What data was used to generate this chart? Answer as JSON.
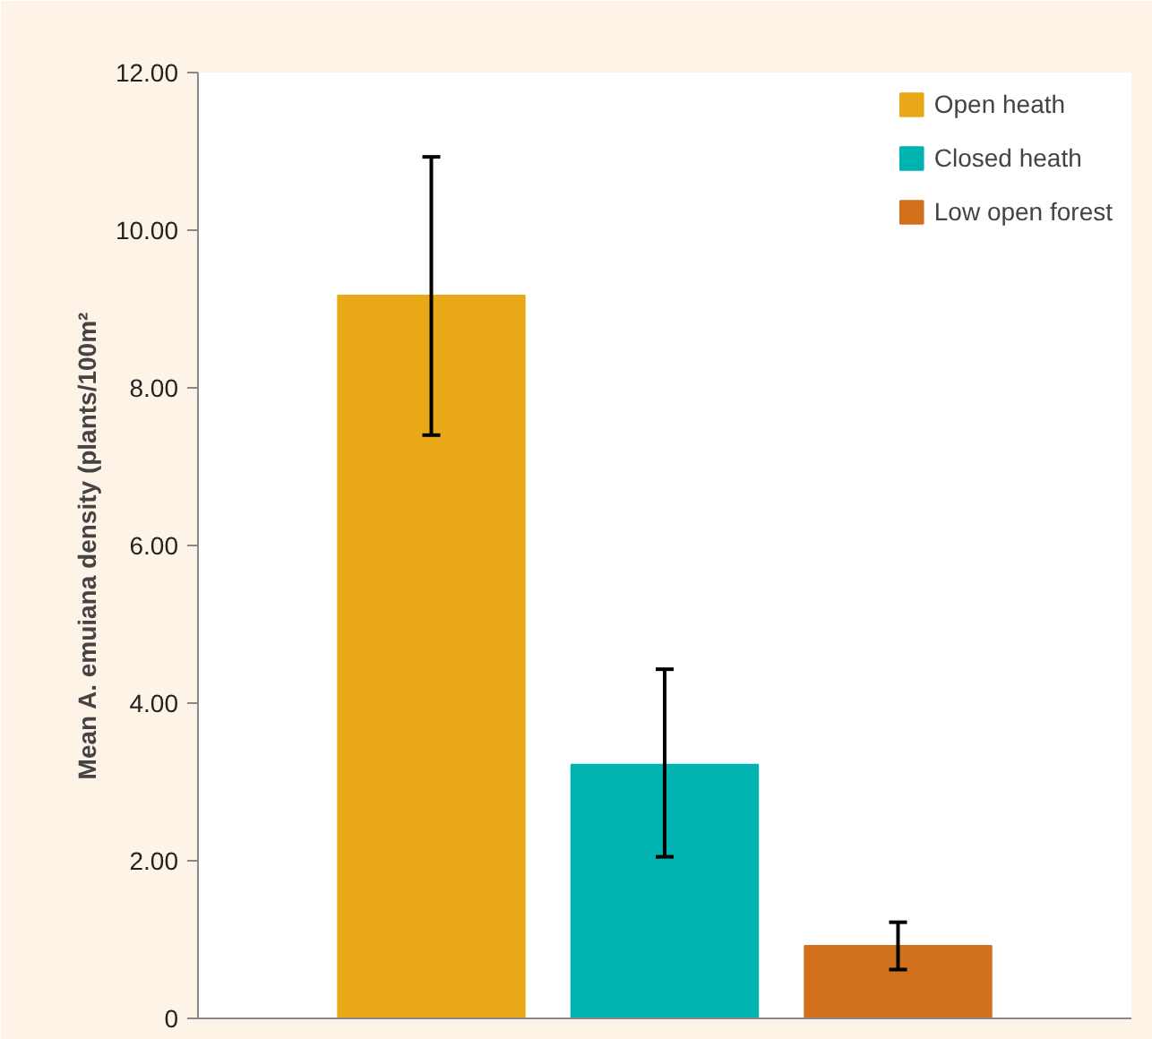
{
  "chart_data": {
    "type": "bar",
    "ylabel": "Mean A. emuiana density (plants/100m²",
    "categories": [
      null,
      null,
      null
    ],
    "series": [
      {
        "name": "Open heath",
        "color": "#e8a817",
        "values": [
          9.17,
          null,
          null
        ],
        "errors": [
          [
            7.4,
            10.93
          ],
          null,
          null
        ]
      },
      {
        "name": "Closed heath",
        "color": "#00b2b0",
        "values": [
          null,
          3.22,
          null
        ],
        "errors": [
          null,
          [
            2.05,
            4.43
          ],
          null
        ]
      },
      {
        "name": "Low open forest",
        "color": "#d2711c",
        "values": [
          null,
          null,
          0.92
        ],
        "errors": [
          null,
          null,
          [
            0.62,
            1.22
          ]
        ]
      }
    ],
    "ylim": [
      0,
      12
    ],
    "yticks": [
      {
        "value": 0,
        "label": "0"
      },
      {
        "value": 2,
        "label": "2.00"
      },
      {
        "value": 4,
        "label": "4.00"
      },
      {
        "value": 6,
        "label": "6.00"
      },
      {
        "value": 8,
        "label": "8.00"
      },
      {
        "value": 10,
        "label": "10.00"
      },
      {
        "value": 12,
        "label": "12.00"
      }
    ],
    "grid": false,
    "legend": "top right"
  }
}
